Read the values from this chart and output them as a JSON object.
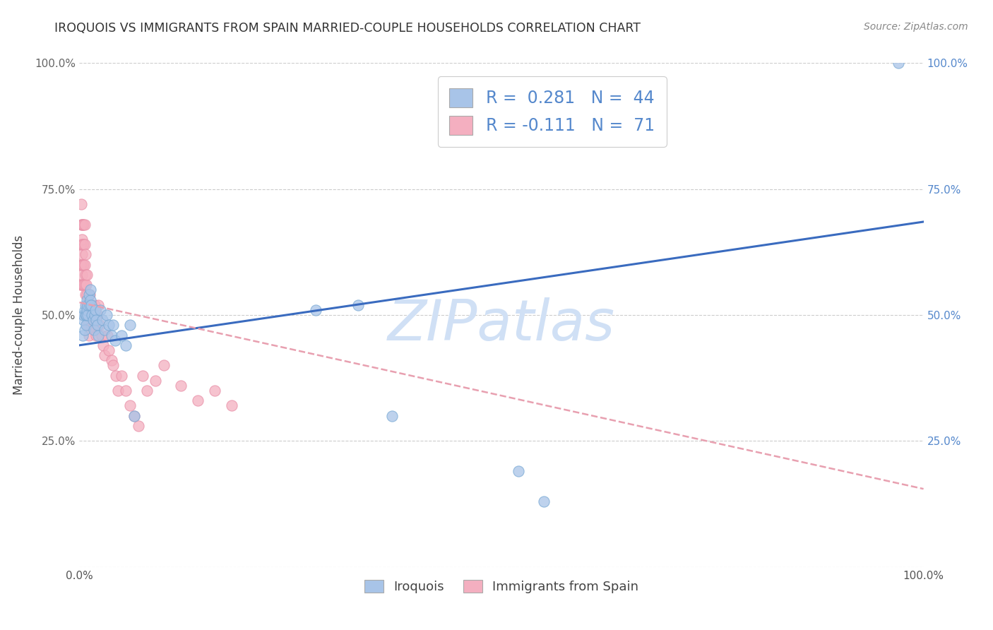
{
  "title": "IROQUOIS VS IMMIGRANTS FROM SPAIN MARRIED-COUPLE HOUSEHOLDS CORRELATION CHART",
  "source": "Source: ZipAtlas.com",
  "ylabel": "Married-couple Households",
  "legend_labels": [
    "Iroquois",
    "Immigrants from Spain"
  ],
  "iroquois_R": "0.281",
  "iroquois_N": "44",
  "spain_R": "-0.111",
  "spain_N": "71",
  "iroquois_color": "#a8c4e8",
  "iroquois_edge_color": "#7aaad4",
  "spain_color": "#f4afc0",
  "spain_edge_color": "#e890a8",
  "iroquois_line_color": "#3a6bbf",
  "spain_line_color": "#e8a0b0",
  "watermark": "ZIPatlas",
  "watermark_color": "#d0e0f5",
  "right_tick_color": "#5588cc",
  "left_tick_color": "#666666",
  "iroquois_x": [
    0.004,
    0.005,
    0.005,
    0.006,
    0.006,
    0.007,
    0.007,
    0.008,
    0.008,
    0.009,
    0.009,
    0.01,
    0.01,
    0.011,
    0.012,
    0.013,
    0.013,
    0.014,
    0.015,
    0.016,
    0.017,
    0.018,
    0.019,
    0.02,
    0.021,
    0.022,
    0.025,
    0.027,
    0.03,
    0.032,
    0.035,
    0.038,
    0.04,
    0.042,
    0.05,
    0.055,
    0.06,
    0.065,
    0.28,
    0.33,
    0.37,
    0.52,
    0.55,
    0.97
  ],
  "iroquois_y": [
    0.46,
    0.49,
    0.5,
    0.47,
    0.51,
    0.5,
    0.52,
    0.48,
    0.5,
    0.51,
    0.53,
    0.5,
    0.52,
    0.54,
    0.52,
    0.53,
    0.55,
    0.52,
    0.5,
    0.49,
    0.47,
    0.5,
    0.51,
    0.49,
    0.48,
    0.46,
    0.51,
    0.49,
    0.47,
    0.5,
    0.48,
    0.46,
    0.48,
    0.45,
    0.46,
    0.44,
    0.48,
    0.3,
    0.51,
    0.52,
    0.3,
    0.19,
    0.13,
    1.0
  ],
  "spain_x": [
    0.001,
    0.001,
    0.001,
    0.002,
    0.002,
    0.002,
    0.002,
    0.002,
    0.003,
    0.003,
    0.003,
    0.003,
    0.004,
    0.004,
    0.004,
    0.004,
    0.005,
    0.005,
    0.005,
    0.005,
    0.006,
    0.006,
    0.006,
    0.006,
    0.007,
    0.007,
    0.007,
    0.008,
    0.008,
    0.009,
    0.009,
    0.009,
    0.01,
    0.01,
    0.011,
    0.011,
    0.012,
    0.012,
    0.013,
    0.014,
    0.015,
    0.016,
    0.017,
    0.018,
    0.019,
    0.02,
    0.021,
    0.022,
    0.024,
    0.026,
    0.028,
    0.03,
    0.033,
    0.035,
    0.038,
    0.04,
    0.043,
    0.046,
    0.05,
    0.055,
    0.06,
    0.065,
    0.07,
    0.075,
    0.08,
    0.09,
    0.1,
    0.12,
    0.14,
    0.16,
    0.18
  ],
  "spain_y": [
    0.56,
    0.6,
    0.64,
    0.56,
    0.6,
    0.64,
    0.68,
    0.72,
    0.58,
    0.62,
    0.65,
    0.68,
    0.56,
    0.6,
    0.64,
    0.68,
    0.56,
    0.6,
    0.64,
    0.68,
    0.56,
    0.6,
    0.64,
    0.68,
    0.54,
    0.58,
    0.62,
    0.52,
    0.56,
    0.5,
    0.54,
    0.58,
    0.48,
    0.52,
    0.46,
    0.5,
    0.5,
    0.54,
    0.5,
    0.48,
    0.52,
    0.5,
    0.48,
    0.52,
    0.47,
    0.46,
    0.5,
    0.52,
    0.48,
    0.46,
    0.44,
    0.42,
    0.46,
    0.43,
    0.41,
    0.4,
    0.38,
    0.35,
    0.38,
    0.35,
    0.32,
    0.3,
    0.28,
    0.38,
    0.35,
    0.37,
    0.4,
    0.36,
    0.33,
    0.35,
    0.32
  ],
  "xlim": [
    0,
    1.0
  ],
  "ylim": [
    0,
    1.0
  ],
  "iroq_line_x0": 0.0,
  "iroq_line_y0": 0.44,
  "iroq_line_x1": 1.0,
  "iroq_line_y1": 0.685,
  "spain_line_x0": 0.0,
  "spain_line_y0": 0.525,
  "spain_line_x1": 1.0,
  "spain_line_y1": 0.155,
  "figsize": [
    14.06,
    8.92
  ],
  "dpi": 100
}
